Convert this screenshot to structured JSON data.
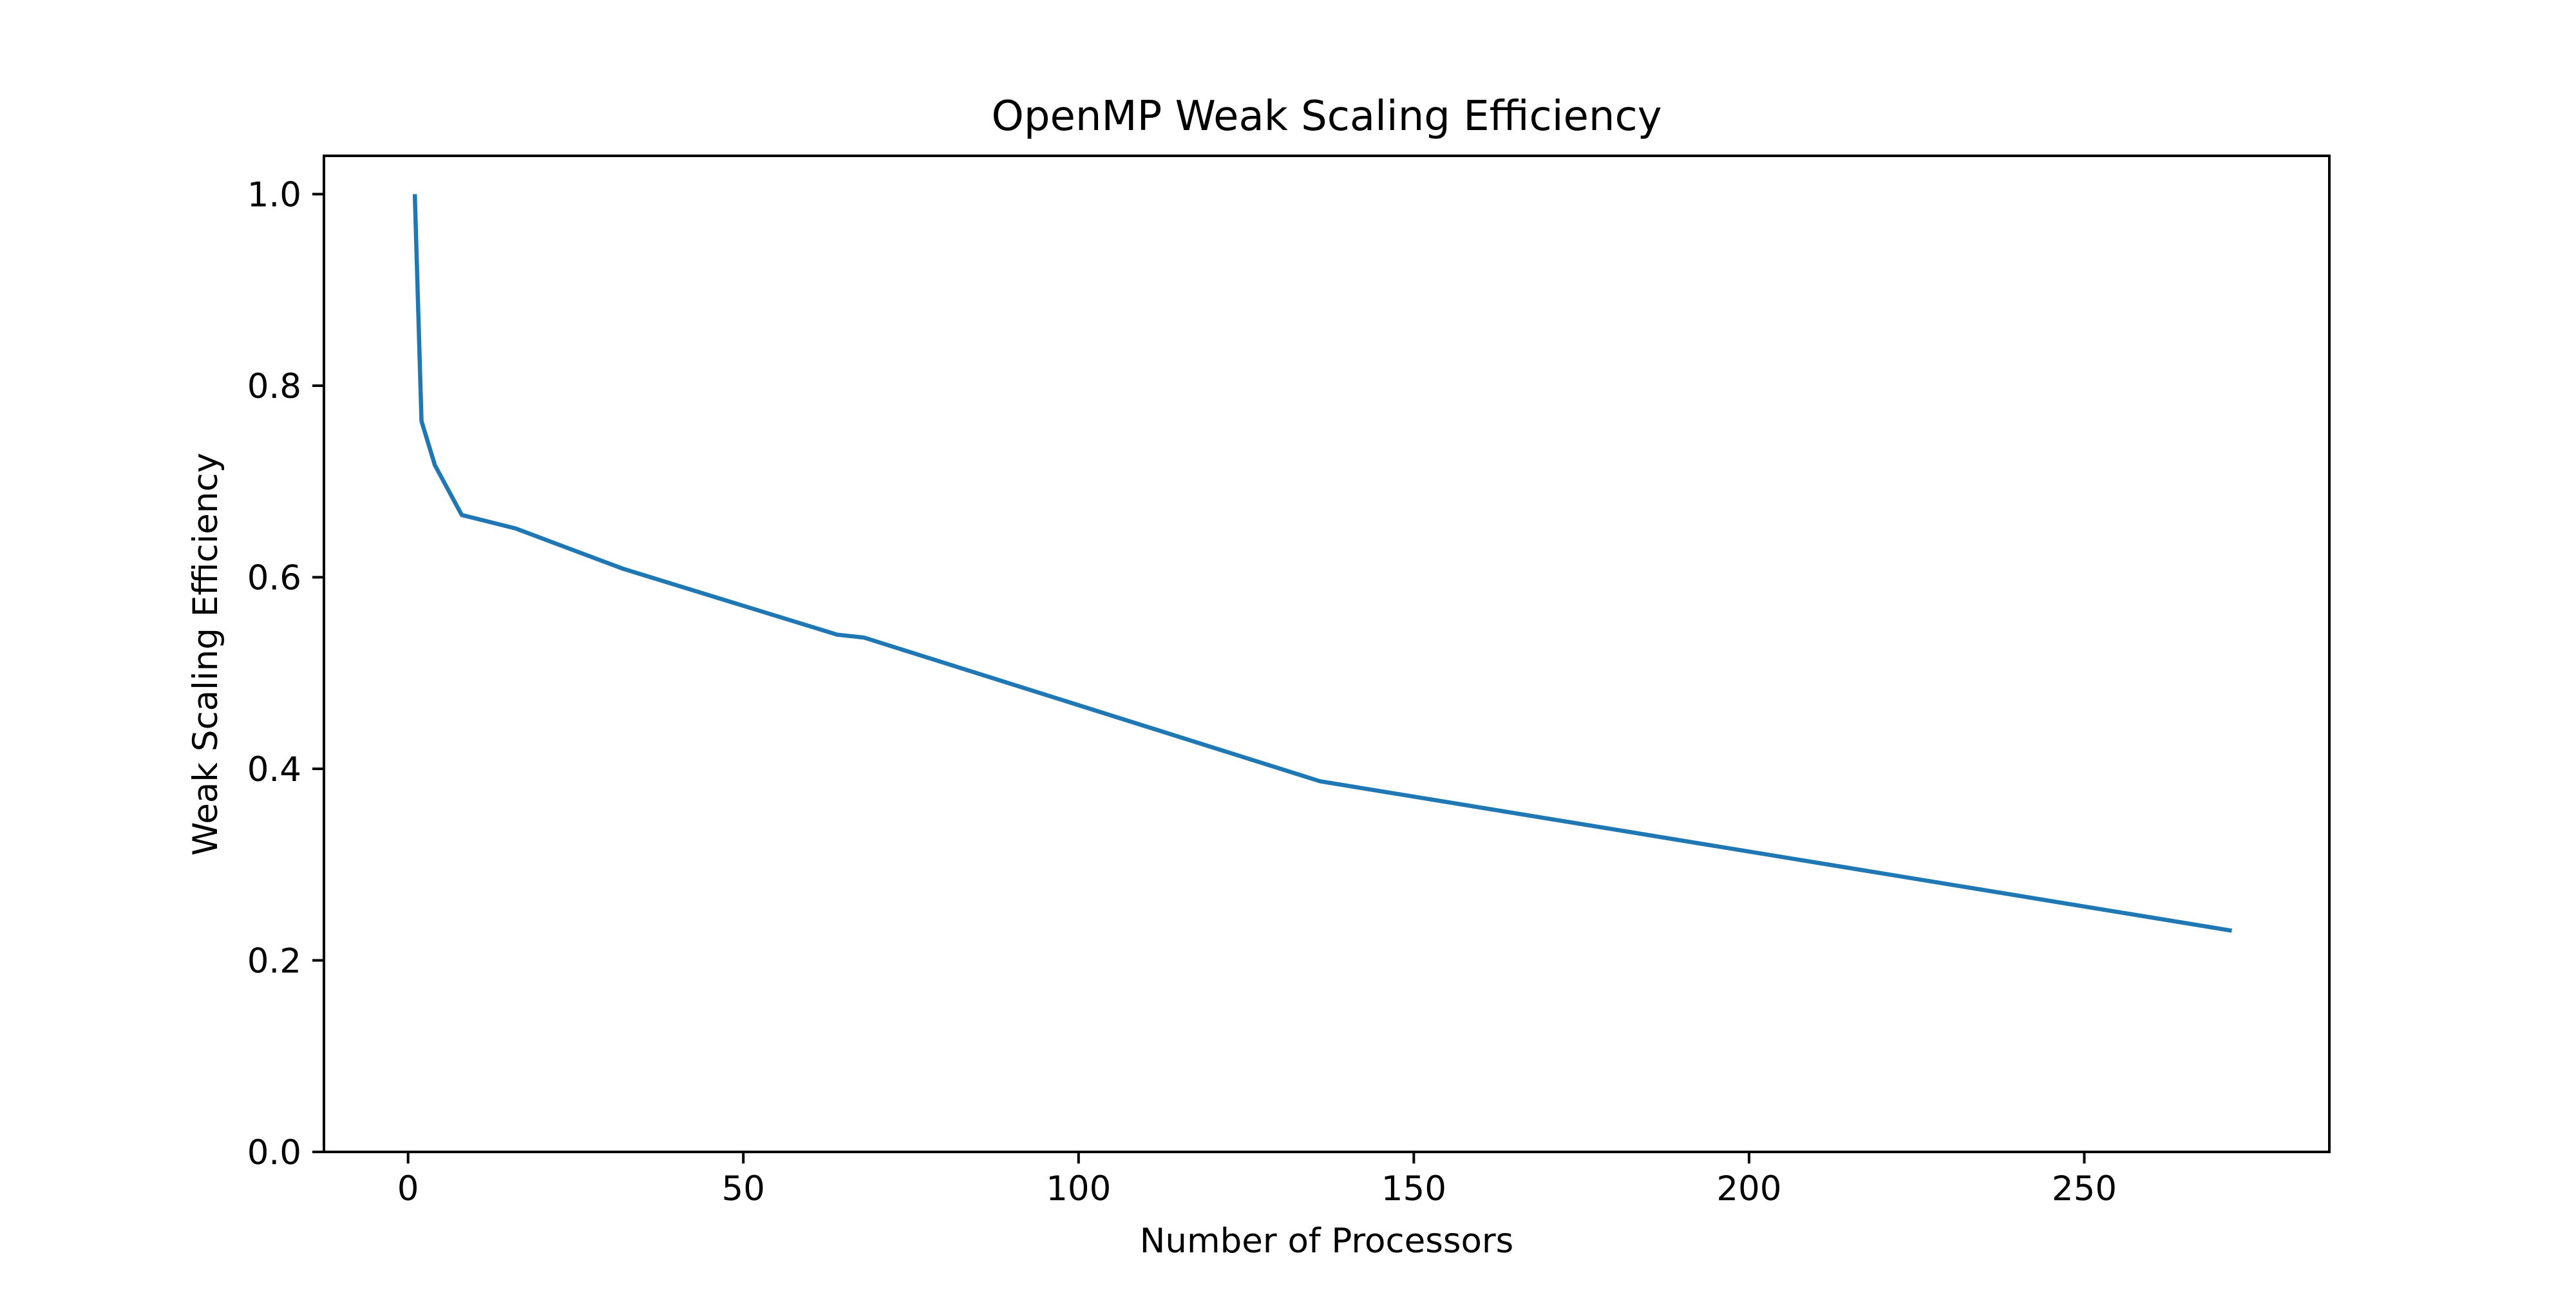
{
  "chart_data": {
    "type": "line",
    "title": "OpenMP Weak Scaling Efficiency",
    "xlabel": "Number of Processors",
    "ylabel": "Weak Scaling Efficiency",
    "xlim": [
      -12.55,
      286.55
    ],
    "ylim": [
      0.0,
      1.04
    ],
    "xticks": [
      0,
      50,
      100,
      150,
      200,
      250
    ],
    "yticks": [
      0.0,
      0.2,
      0.4,
      0.6,
      0.8,
      1.0
    ],
    "grid": false,
    "legend": "none",
    "series": [
      {
        "color": "#1f77b4",
        "x": [
          1,
          2,
          4,
          8,
          16,
          32,
          64,
          68,
          136,
          272
        ],
        "y": [
          1.0,
          0.763,
          0.717,
          0.665,
          0.651,
          0.609,
          0.54,
          0.537,
          0.387,
          0.231
        ]
      }
    ]
  }
}
